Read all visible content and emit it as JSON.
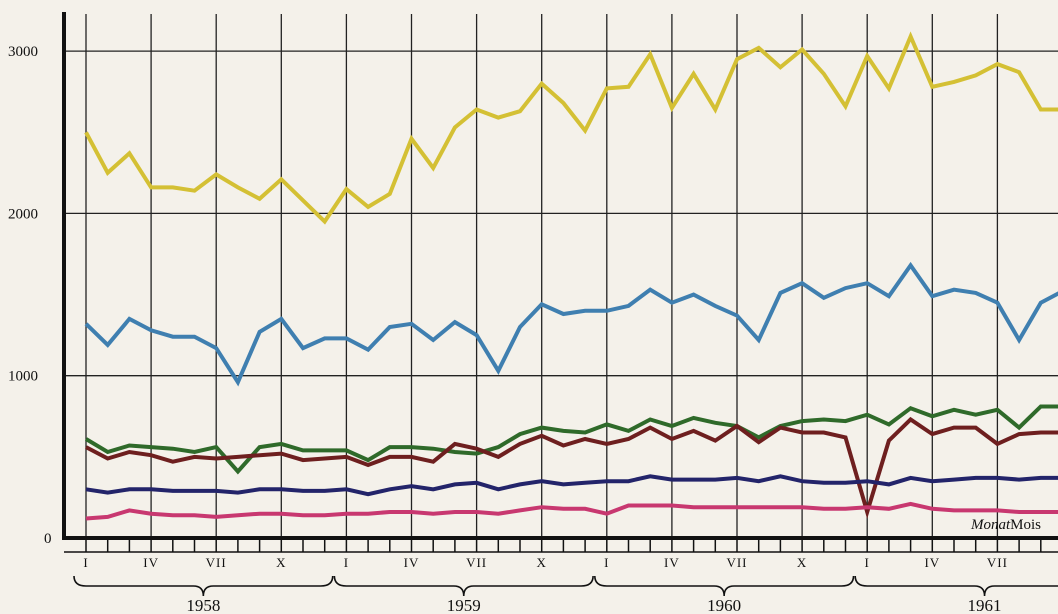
{
  "chart_data": {
    "type": "line",
    "y_ticks": [
      0,
      1000,
      2000,
      3000
    ],
    "ylim": [
      0,
      3200
    ],
    "x_unit_de": "Monat",
    "x_unit_fr": "Mois",
    "month_labels": [
      "I",
      "IV",
      "VII",
      "X"
    ],
    "years": [
      "1958",
      "1959",
      "1960",
      "1961"
    ],
    "grid": true,
    "series": [
      {
        "color": "#d4c034",
        "values": [
          2500,
          2250,
          2370,
          2160,
          2160,
          2140,
          2240,
          2160,
          2090,
          2210,
          2080,
          1950,
          2150,
          2040,
          2120,
          2460,
          2280,
          2530,
          2640,
          2590,
          2630,
          2800,
          2680,
          2510,
          2770,
          2780,
          2980,
          2650,
          2860,
          2640,
          2950,
          3020,
          2900,
          3010,
          2860,
          2660,
          2970,
          2770,
          3090,
          2780,
          2810,
          2850,
          2920,
          2870,
          2640,
          2640
        ]
      },
      {
        "color": "#3f7fb0",
        "values": [
          1320,
          1190,
          1350,
          1280,
          1240,
          1240,
          1170,
          960,
          1270,
          1350,
          1170,
          1230,
          1230,
          1160,
          1300,
          1320,
          1220,
          1330,
          1250,
          1030,
          1300,
          1440,
          1380,
          1400,
          1400,
          1430,
          1530,
          1450,
          1500,
          1430,
          1370,
          1220,
          1510,
          1570,
          1480,
          1540,
          1570,
          1490,
          1680,
          1490,
          1530,
          1510,
          1450,
          1220,
          1450,
          1520
        ]
      },
      {
        "color": "#2f6a2a",
        "values": [
          610,
          530,
          570,
          560,
          550,
          530,
          560,
          410,
          560,
          580,
          540,
          540,
          540,
          480,
          560,
          560,
          550,
          530,
          520,
          560,
          640,
          680,
          660,
          650,
          700,
          660,
          730,
          690,
          740,
          710,
          690,
          620,
          690,
          720,
          730,
          720,
          760,
          700,
          800,
          750,
          790,
          760,
          790,
          680,
          810,
          810
        ]
      },
      {
        "color": "#6e1f1f",
        "values": [
          560,
          490,
          530,
          510,
          470,
          500,
          490,
          500,
          510,
          520,
          480,
          490,
          500,
          450,
          500,
          500,
          470,
          580,
          550,
          500,
          580,
          630,
          570,
          610,
          580,
          610,
          680,
          610,
          660,
          600,
          690,
          590,
          680,
          650,
          650,
          620,
          160,
          600,
          730,
          640,
          680,
          680,
          580,
          640,
          650,
          650
        ]
      },
      {
        "color": "#23246a",
        "values": [
          300,
          280,
          300,
          300,
          290,
          290,
          290,
          280,
          300,
          300,
          290,
          290,
          300,
          270,
          300,
          320,
          300,
          330,
          340,
          300,
          330,
          350,
          330,
          340,
          350,
          350,
          380,
          360,
          360,
          360,
          370,
          350,
          380,
          350,
          340,
          340,
          350,
          330,
          370,
          350,
          360,
          370,
          370,
          360,
          370,
          370
        ]
      },
      {
        "color": "#c83870",
        "values": [
          120,
          130,
          170,
          150,
          140,
          140,
          130,
          140,
          150,
          150,
          140,
          140,
          150,
          150,
          160,
          160,
          150,
          160,
          160,
          150,
          170,
          190,
          180,
          180,
          150,
          200,
          200,
          200,
          190,
          190,
          190,
          190,
          190,
          190,
          180,
          180,
          190,
          180,
          210,
          180,
          170,
          170,
          170,
          160,
          160,
          160
        ]
      }
    ]
  }
}
